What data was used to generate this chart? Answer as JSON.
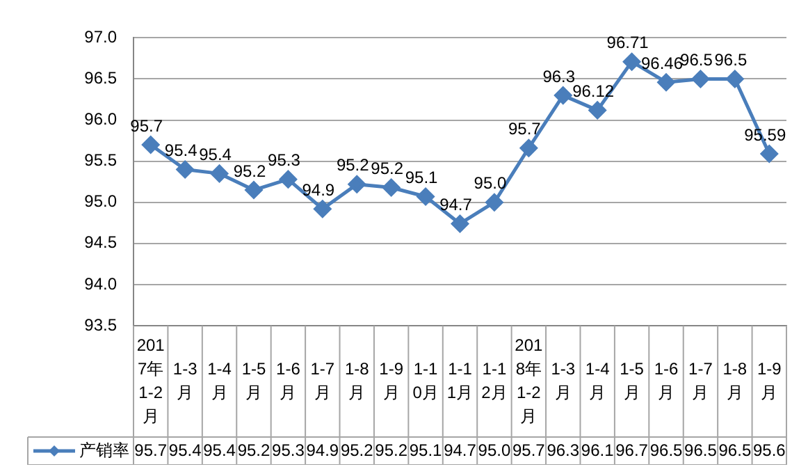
{
  "chart_data": {
    "type": "line",
    "categories": [
      "2017年1-2月",
      "1-3月",
      "1-4月",
      "1-5月",
      "1-6月",
      "1-7月",
      "1-8月",
      "1-9月",
      "1-10月",
      "1-11月",
      "1-12月",
      "2018年1-2月",
      "1-3月",
      "1-4月",
      "1-5月",
      "1-6月",
      "1-7月",
      "1-8月",
      "1-9月"
    ],
    "series": [
      {
        "name": "产销率",
        "color": "#4a7ebb",
        "values": [
          95.7,
          95.4,
          95.35,
          95.15,
          95.28,
          94.92,
          95.22,
          95.18,
          95.07,
          94.74,
          95.0,
          95.66,
          96.3,
          96.12,
          96.71,
          96.46,
          96.5,
          96.5,
          95.59
        ],
        "value_labels": [
          "95.7",
          "95.4",
          "95.4",
          "95.2",
          "95.3",
          "94.9",
          "95.2",
          "95.2",
          "95.1",
          "94.7",
          "95.0",
          "95.7",
          "96.3",
          "96.12",
          "96.71",
          "96.46",
          "96.5",
          "96.5",
          "95.59"
        ]
      }
    ],
    "ylim": [
      93.5,
      97.0
    ],
    "yticks": [
      {
        "value": 93.5,
        "label": "93.5"
      },
      {
        "value": 94,
        "label": "94.0"
      },
      {
        "value": 94.5,
        "label": "94.5"
      },
      {
        "value": 95,
        "label": "95.0"
      },
      {
        "value": 95.5,
        "label": "95.5"
      },
      {
        "value": 96,
        "label": "96.0"
      },
      {
        "value": 96.5,
        "label": "96.5"
      },
      {
        "value": 97,
        "label": "97.0"
      }
    ],
    "annotations": [
      "95.7",
      "95.4",
      "95.4",
      "95.2",
      "95.3",
      "94.9",
      "95.2",
      "95.2",
      "95.1",
      "94.7",
      "95.0",
      "95.7",
      "96.3",
      "96.1",
      "96.7",
      "96.5",
      "96.5",
      "96.5",
      "95.6"
    ],
    "grid": "y",
    "legend": "bottom",
    "marker": "diamond",
    "line_style": "solid"
  }
}
